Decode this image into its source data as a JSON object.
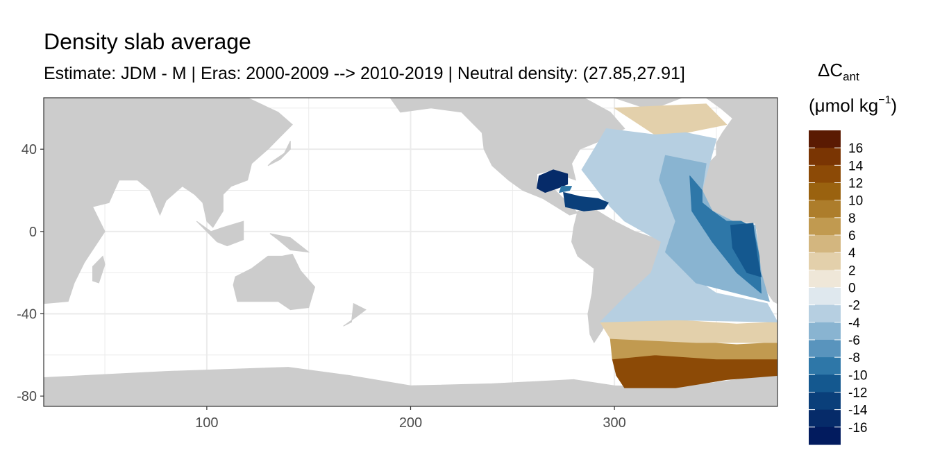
{
  "title": "Density slab average",
  "subtitle": "Estimate: JDM - M | Eras: 2000-2009 --> 2010-2019 | Neutral density: (27.85,27.91]",
  "legend": {
    "title_main": "ΔC",
    "title_sub": "ant",
    "unit_open": "(μmol kg",
    "unit_sup": "−1",
    "unit_close": ")",
    "bins": [
      {
        "value": 17,
        "color": "#5a1a02"
      },
      {
        "value": 15,
        "color": "#7a3503"
      },
      {
        "value": 13,
        "color": "#8c4a06"
      },
      {
        "value": 11,
        "color": "#9a620f"
      },
      {
        "value": 9,
        "color": "#ad7d2b"
      },
      {
        "value": 7,
        "color": "#c19a50"
      },
      {
        "value": 5,
        "color": "#d3b67f"
      },
      {
        "value": 3,
        "color": "#e3d0ab"
      },
      {
        "value": 1,
        "color": "#efe7d8"
      },
      {
        "value": -1,
        "color": "#dfe8ee"
      },
      {
        "value": -3,
        "color": "#b6cfe1"
      },
      {
        "value": -5,
        "color": "#89b4d1"
      },
      {
        "value": -7,
        "color": "#5994bd"
      },
      {
        "value": -9,
        "color": "#2e77a8"
      },
      {
        "value": -11,
        "color": "#14588f"
      },
      {
        "value": -13,
        "color": "#0a3f7a"
      },
      {
        "value": -15,
        "color": "#062b69"
      },
      {
        "value": -17,
        "color": "#021b5e"
      }
    ],
    "tick_labels": [
      "16",
      "14",
      "12",
      "10",
      "8",
      "6",
      "4",
      "2",
      "0",
      "-2",
      "-4",
      "-6",
      "-8",
      "-10",
      "-12",
      "-14",
      "-16"
    ]
  },
  "map": {
    "xlim": [
      20,
      380
    ],
    "ylim": [
      -85,
      65
    ],
    "x_ticks": [
      {
        "v": 100,
        "label": "100"
      },
      {
        "v": 200,
        "label": "200"
      },
      {
        "v": 300,
        "label": "300"
      }
    ],
    "y_ticks": [
      {
        "v": 40,
        "label": "40"
      },
      {
        "v": 0,
        "label": "0"
      },
      {
        "v": -40,
        "label": "-40"
      },
      {
        "v": -80,
        "label": "-80"
      }
    ],
    "colors": {
      "land": "#cccccc",
      "ocean": "#ffffff",
      "grid": "#ebebeb",
      "frame": "#333333"
    },
    "land": [
      {
        "name": "eurasia-africa-west",
        "pts": [
          [
            20,
            65
          ],
          [
            120,
            65
          ],
          [
            135,
            58
          ],
          [
            142,
            52
          ],
          [
            135,
            45
          ],
          [
            130,
            40
          ],
          [
            122,
            33
          ],
          [
            120,
            25
          ],
          [
            112,
            22
          ],
          [
            108,
            18
          ],
          [
            108,
            10
          ],
          [
            103,
            2
          ],
          [
            100,
            5
          ],
          [
            98,
            14
          ],
          [
            94,
            18
          ],
          [
            88,
            22
          ],
          [
            80,
            15
          ],
          [
            77,
            8
          ],
          [
            72,
            20
          ],
          [
            66,
            25
          ],
          [
            57,
            25
          ],
          [
            52,
            14
          ],
          [
            44,
            12
          ],
          [
            50,
            0
          ],
          [
            40,
            -15
          ],
          [
            35,
            -25
          ],
          [
            32,
            -34
          ],
          [
            20,
            -35
          ]
        ]
      },
      {
        "name": "madagascar",
        "pts": [
          [
            49,
            -12
          ],
          [
            50,
            -16
          ],
          [
            47,
            -25
          ],
          [
            44,
            -24
          ],
          [
            44,
            -17
          ]
        ]
      },
      {
        "name": "sumatra-borneo",
        "pts": [
          [
            95,
            5
          ],
          [
            105,
            -5
          ],
          [
            110,
            -7
          ],
          [
            118,
            -4
          ],
          [
            118,
            5
          ],
          [
            108,
            2
          ],
          [
            102,
            0
          ]
        ]
      },
      {
        "name": "japan",
        "pts": [
          [
            130,
            32
          ],
          [
            136,
            35
          ],
          [
            141,
            40
          ],
          [
            141,
            44
          ],
          [
            138,
            38
          ],
          [
            132,
            34
          ]
        ]
      },
      {
        "name": "australia",
        "pts": [
          [
            114,
            -22
          ],
          [
            122,
            -18
          ],
          [
            130,
            -12
          ],
          [
            137,
            -12
          ],
          [
            142,
            -11
          ],
          [
            146,
            -19
          ],
          [
            153,
            -27
          ],
          [
            150,
            -37
          ],
          [
            141,
            -38
          ],
          [
            135,
            -34
          ],
          [
            124,
            -34
          ],
          [
            115,
            -34
          ],
          [
            113,
            -26
          ]
        ]
      },
      {
        "name": "new-guinea",
        "pts": [
          [
            131,
            -1
          ],
          [
            141,
            -3
          ],
          [
            150,
            -10
          ],
          [
            141,
            -9
          ],
          [
            135,
            -4
          ]
        ]
      },
      {
        "name": "new-zealand",
        "pts": [
          [
            172,
            -35
          ],
          [
            178,
            -38
          ],
          [
            174,
            -41
          ],
          [
            167,
            -46
          ],
          [
            171,
            -44
          ]
        ]
      },
      {
        "name": "north-america",
        "pts": [
          [
            190,
            65
          ],
          [
            285,
            65
          ],
          [
            298,
            58
          ],
          [
            305,
            50
          ],
          [
            293,
            44
          ],
          [
            283,
            40
          ],
          [
            279,
            33
          ],
          [
            281,
            25
          ],
          [
            278,
            26
          ],
          [
            270,
            30
          ],
          [
            262,
            28
          ],
          [
            262,
            20
          ],
          [
            270,
            21
          ],
          [
            276,
            15
          ],
          [
            282,
            9
          ],
          [
            278,
            8
          ],
          [
            265,
            16
          ],
          [
            255,
            20
          ],
          [
            248,
            25
          ],
          [
            240,
            32
          ],
          [
            236,
            40
          ],
          [
            235,
            48
          ],
          [
            225,
            58
          ],
          [
            210,
            60
          ],
          [
            195,
            58
          ]
        ]
      },
      {
        "name": "greenland",
        "pts": [
          [
            300,
            65
          ],
          [
            333,
            65
          ],
          [
            320,
            60
          ],
          [
            315,
            60
          ]
        ]
      },
      {
        "name": "south-america",
        "pts": [
          [
            282,
            10
          ],
          [
            290,
            11
          ],
          [
            300,
            5
          ],
          [
            310,
            0
          ],
          [
            325,
            -5
          ],
          [
            322,
            -15
          ],
          [
            318,
            -22
          ],
          [
            312,
            -25
          ],
          [
            307,
            -35
          ],
          [
            298,
            -40
          ],
          [
            294,
            -48
          ],
          [
            290,
            -54
          ],
          [
            288,
            -50
          ],
          [
            287,
            -40
          ],
          [
            289,
            -30
          ],
          [
            290,
            -18
          ],
          [
            282,
            -12
          ],
          [
            279,
            -5
          ],
          [
            280,
            2
          ]
        ]
      },
      {
        "name": "europe-africa-east",
        "pts": [
          [
            380,
            65
          ],
          [
            345,
            65
          ],
          [
            352,
            60
          ],
          [
            358,
            55
          ],
          [
            353,
            48
          ],
          [
            350,
            43
          ],
          [
            350,
            37
          ],
          [
            345,
            32
          ],
          [
            342,
            28
          ],
          [
            343,
            20
          ],
          [
            343,
            14
          ],
          [
            348,
            10
          ],
          [
            353,
            5
          ],
          [
            360,
            5
          ],
          [
            369,
            4
          ],
          [
            370,
            0
          ],
          [
            371,
            -12
          ],
          [
            372,
            -20
          ],
          [
            374,
            -28
          ],
          [
            378,
            -34
          ],
          [
            380,
            -35
          ]
        ]
      },
      {
        "name": "antarctica",
        "pts": [
          [
            20,
            -71
          ],
          [
            80,
            -68
          ],
          [
            140,
            -66
          ],
          [
            170,
            -70
          ],
          [
            200,
            -75
          ],
          [
            240,
            -74
          ],
          [
            280,
            -72
          ],
          [
            300,
            -75
          ],
          [
            330,
            -76
          ],
          [
            360,
            -72
          ],
          [
            380,
            -70
          ],
          [
            380,
            -85
          ],
          [
            20,
            -85
          ]
        ]
      }
    ],
    "ocean_patches": [
      {
        "name": "antarctic-brown",
        "color": "#8c4a06",
        "pts": [
          [
            299,
            -62
          ],
          [
            315,
            -60
          ],
          [
            340,
            -61
          ],
          [
            360,
            -62
          ],
          [
            380,
            -62
          ],
          [
            380,
            -70
          ],
          [
            355,
            -72
          ],
          [
            330,
            -76
          ],
          [
            305,
            -76
          ],
          [
            301,
            -70
          ]
        ]
      },
      {
        "name": "southern-tan",
        "color": "#c19a50",
        "pts": [
          [
            298,
            -52
          ],
          [
            330,
            -53
          ],
          [
            360,
            -55
          ],
          [
            380,
            -54
          ],
          [
            380,
            -62
          ],
          [
            350,
            -62
          ],
          [
            320,
            -60
          ],
          [
            299,
            -62
          ]
        ]
      },
      {
        "name": "south-atl-cream",
        "color": "#e3d0ab",
        "pts": [
          [
            293,
            -44
          ],
          [
            330,
            -43
          ],
          [
            360,
            -45
          ],
          [
            380,
            -44
          ],
          [
            380,
            -54
          ],
          [
            340,
            -54
          ],
          [
            298,
            -52
          ]
        ]
      },
      {
        "name": "arctic-tan",
        "color": "#e3d0ab",
        "pts": [
          [
            300,
            60
          ],
          [
            345,
            62
          ],
          [
            355,
            52
          ],
          [
            335,
            48
          ],
          [
            320,
            47
          ]
        ]
      },
      {
        "name": "atlantic-light",
        "color": "#b6cfe1",
        "pts": [
          [
            296,
            50
          ],
          [
            320,
            47
          ],
          [
            335,
            48
          ],
          [
            350,
            45
          ],
          [
            343,
            20
          ],
          [
            330,
            0
          ],
          [
            335,
            -20
          ],
          [
            350,
            -30
          ],
          [
            375,
            -35
          ],
          [
            380,
            -44
          ],
          [
            330,
            -43
          ],
          [
            293,
            -44
          ],
          [
            305,
            -32
          ],
          [
            318,
            -20
          ],
          [
            323,
            -5
          ],
          [
            305,
            5
          ],
          [
            298,
            12
          ],
          [
            284,
            30
          ],
          [
            290,
            40
          ]
        ]
      },
      {
        "name": "atlantic-mid",
        "color": "#89b4d1",
        "pts": [
          [
            325,
            37
          ],
          [
            345,
            33
          ],
          [
            343,
            20
          ],
          [
            348,
            10
          ],
          [
            358,
            5
          ],
          [
            369,
            3
          ],
          [
            372,
            -20
          ],
          [
            376,
            -34
          ],
          [
            340,
            -25
          ],
          [
            325,
            -10
          ],
          [
            330,
            5
          ],
          [
            322,
            25
          ]
        ]
      },
      {
        "name": "atlantic-east",
        "color": "#2e77a8",
        "pts": [
          [
            337,
            27
          ],
          [
            343,
            20
          ],
          [
            343,
            14
          ],
          [
            348,
            10
          ],
          [
            355,
            5
          ],
          [
            362,
            5
          ],
          [
            368,
            2
          ],
          [
            371,
            -12
          ],
          [
            372,
            -30
          ],
          [
            360,
            -20
          ],
          [
            348,
            -5
          ],
          [
            338,
            10
          ]
        ]
      },
      {
        "name": "gulf-of-guinea",
        "color": "#14588f",
        "pts": [
          [
            357,
            3
          ],
          [
            368,
            4
          ],
          [
            370,
            -12
          ],
          [
            372,
            -22
          ],
          [
            365,
            -20
          ],
          [
            358,
            -8
          ]
        ]
      },
      {
        "name": "gulf-of-mexico",
        "color": "#062b69",
        "pts": [
          [
            263,
            27
          ],
          [
            270,
            30
          ],
          [
            277,
            28
          ],
          [
            277,
            23
          ],
          [
            272,
            21
          ],
          [
            266,
            19
          ],
          [
            262,
            21
          ]
        ]
      },
      {
        "name": "caribbean",
        "color": "#0a3f7a",
        "pts": [
          [
            275,
            19
          ],
          [
            283,
            17
          ],
          [
            292,
            16
          ],
          [
            297,
            14
          ],
          [
            295,
            11
          ],
          [
            285,
            10
          ],
          [
            276,
            12
          ]
        ]
      },
      {
        "name": "caribbean-west",
        "color": "#2e77a8",
        "pts": [
          [
            273,
            19
          ],
          [
            278,
            20
          ],
          [
            279,
            22
          ],
          [
            274,
            22
          ]
        ]
      }
    ]
  }
}
